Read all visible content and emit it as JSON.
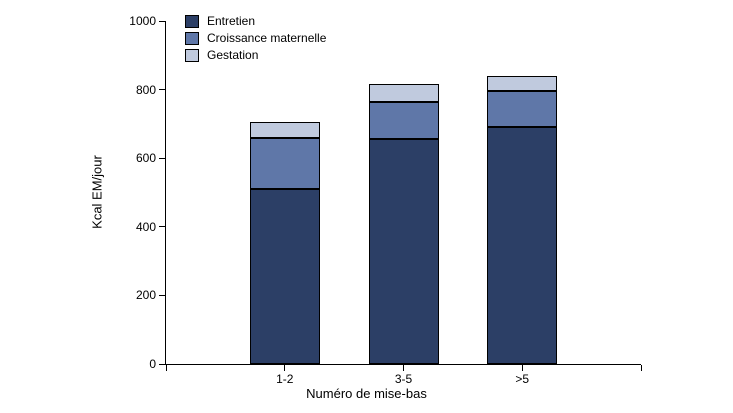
{
  "chart_data": {
    "type": "bar",
    "stacked": true,
    "title": "",
    "xlabel": "Numéro de mise-bas",
    "ylabel": "Kcal EM/jour",
    "ylim": [
      0,
      1000
    ],
    "yticks": [
      0,
      200,
      400,
      600,
      800,
      1000
    ],
    "categories": [
      "1-2",
      "3-5",
      ">5"
    ],
    "series": [
      {
        "name": "Entretien",
        "color": "#2c3f66",
        "values": [
          510,
          655,
          690
        ]
      },
      {
        "name": "Croissance maternelle",
        "color": "#5f77a8",
        "values": [
          150,
          110,
          105
        ]
      },
      {
        "name": "Gestation",
        "color": "#c0cade",
        "values": [
          45,
          50,
          45
        ]
      }
    ],
    "totals": [
      705,
      815,
      840
    ],
    "legend_position": "top-left",
    "grid": false,
    "axis_color": "#000000",
    "background_color": "#ffffff"
  }
}
